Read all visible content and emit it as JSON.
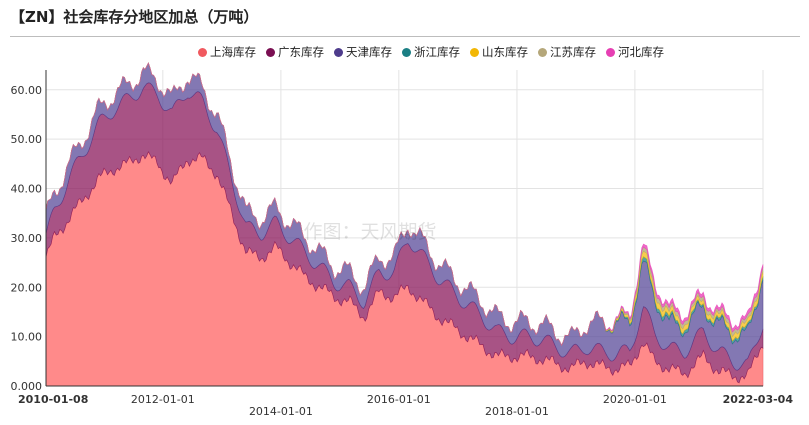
{
  "chart_data": {
    "type": "area",
    "stacked": true,
    "title": "【ZN】社会库存分地区加总（万吨）",
    "watermark": "作图：天风期货",
    "ylim": [
      0,
      64
    ],
    "y_ticks": [
      "0.000",
      "10.00",
      "20.00",
      "30.00",
      "40.00",
      "50.00",
      "60.00"
    ],
    "x_range": [
      "2010-01-08",
      "2022-03-04"
    ],
    "x_ticks": [
      {
        "date": "2010-01-08",
        "label": "2010-01-08",
        "row": 0,
        "bold": true
      },
      {
        "date": "2012-01-01",
        "label": "2012-01-01",
        "row": 0,
        "bold": false
      },
      {
        "date": "2014-01-01",
        "label": "2014-01-01",
        "row": 1,
        "bold": false
      },
      {
        "date": "2016-01-01",
        "label": "2016-01-01",
        "row": 0,
        "bold": false
      },
      {
        "date": "2018-01-01",
        "label": "2018-01-01",
        "row": 1,
        "bold": false
      },
      {
        "date": "2020-01-01",
        "label": "2020-01-01",
        "row": 0,
        "bold": false
      },
      {
        "date": "2022-03-04",
        "label": "2022-03-04",
        "row": 0,
        "bold": true
      }
    ],
    "legend_position": "top-right",
    "grid": true,
    "series": [
      {
        "name": "上海库存",
        "color": "#f0595f",
        "fill": "#ff8a8a",
        "opacity": 1.0,
        "points": [
          [
            "2010-01-08",
            26
          ],
          [
            "2010-03-01",
            30
          ],
          [
            "2010-06-01",
            34
          ],
          [
            "2010-09-01",
            38
          ],
          [
            "2010-12-01",
            42
          ],
          [
            "2011-03-01",
            44
          ],
          [
            "2011-06-01",
            45
          ],
          [
            "2011-09-01",
            47
          ],
          [
            "2011-12-01",
            45
          ],
          [
            "2012-03-01",
            41
          ],
          [
            "2012-06-01",
            46
          ],
          [
            "2012-09-01",
            46
          ],
          [
            "2012-12-01",
            43
          ],
          [
            "2013-03-01",
            35
          ],
          [
            "2013-06-01",
            27
          ],
          [
            "2013-09-01",
            26
          ],
          [
            "2013-12-01",
            28
          ],
          [
            "2014-03-01",
            25
          ],
          [
            "2014-06-01",
            22
          ],
          [
            "2014-09-01",
            20
          ],
          [
            "2014-12-01",
            18
          ],
          [
            "2015-03-01",
            17
          ],
          [
            "2015-06-01",
            14
          ],
          [
            "2015-09-01",
            19
          ],
          [
            "2015-12-01",
            18
          ],
          [
            "2016-03-01",
            20
          ],
          [
            "2016-06-01",
            17
          ],
          [
            "2016-09-01",
            14
          ],
          [
            "2016-12-01",
            12
          ],
          [
            "2017-03-01",
            10
          ],
          [
            "2017-06-01",
            8
          ],
          [
            "2017-09-01",
            6
          ],
          [
            "2017-12-01",
            6
          ],
          [
            "2018-03-01",
            6
          ],
          [
            "2018-06-01",
            5.5
          ],
          [
            "2018-09-01",
            4.5
          ],
          [
            "2018-12-01",
            3.5
          ],
          [
            "2019-03-01",
            5
          ],
          [
            "2019-06-01",
            4
          ],
          [
            "2019-09-01",
            3.5
          ],
          [
            "2019-12-01",
            4
          ],
          [
            "2020-02-20",
            9
          ],
          [
            "2020-05-01",
            5
          ],
          [
            "2020-08-01",
            3.5
          ],
          [
            "2020-11-01",
            2.5
          ],
          [
            "2021-03-01",
            6
          ],
          [
            "2021-06-01",
            3
          ],
          [
            "2021-09-01",
            2
          ],
          [
            "2021-12-01",
            2
          ],
          [
            "2022-03-04",
            9
          ]
        ]
      },
      {
        "name": "广东库存",
        "color": "#7a0f52",
        "fill": "#8b1a5c",
        "opacity": 0.75,
        "points": [
          [
            "2010-01-08",
            4
          ],
          [
            "2010-06-01",
            8
          ],
          [
            "2010-12-01",
            11
          ],
          [
            "2011-06-01",
            13
          ],
          [
            "2011-12-01",
            14
          ],
          [
            "2012-06-01",
            14
          ],
          [
            "2012-12-01",
            9
          ],
          [
            "2013-06-01",
            5
          ],
          [
            "2013-12-01",
            5
          ],
          [
            "2014-06-01",
            5
          ],
          [
            "2014-12-01",
            3
          ],
          [
            "2015-06-01",
            3
          ],
          [
            "2015-12-01",
            5
          ],
          [
            "2016-03-01",
            10
          ],
          [
            "2016-06-01",
            9
          ],
          [
            "2016-12-01",
            7
          ],
          [
            "2017-06-01",
            6
          ],
          [
            "2017-12-01",
            4
          ],
          [
            "2018-06-01",
            4
          ],
          [
            "2018-12-01",
            3
          ],
          [
            "2019-06-01",
            3
          ],
          [
            "2019-12-01",
            3
          ],
          [
            "2020-02-20",
            7
          ],
          [
            "2020-08-01",
            4
          ],
          [
            "2021-03-01",
            5
          ],
          [
            "2021-12-01",
            2
          ],
          [
            "2022-03-04",
            4
          ]
        ]
      },
      {
        "name": "天津库存",
        "color": "#4e3c8c",
        "fill": "#5a4b9a",
        "opacity": 0.75,
        "points": [
          [
            "2010-01-08",
            4
          ],
          [
            "2010-06-01",
            3
          ],
          [
            "2010-12-01",
            3
          ],
          [
            "2011-06-01",
            3
          ],
          [
            "2011-12-01",
            3
          ],
          [
            "2012-06-01",
            3
          ],
          [
            "2012-12-01",
            3
          ],
          [
            "2013-06-01",
            3
          ],
          [
            "2013-12-01",
            3
          ],
          [
            "2014-06-01",
            3
          ],
          [
            "2014-12-01",
            3
          ],
          [
            "2015-06-01",
            3
          ],
          [
            "2015-12-01",
            3
          ],
          [
            "2016-03-01",
            3
          ],
          [
            "2016-06-01",
            3
          ],
          [
            "2016-12-01",
            3
          ],
          [
            "2017-06-01",
            3
          ],
          [
            "2017-12-01",
            3
          ],
          [
            "2018-06-01",
            3
          ],
          [
            "2018-12-01",
            3
          ],
          [
            "2019-06-01",
            6
          ],
          [
            "2019-12-01",
            6
          ],
          [
            "2020-02-20",
            9
          ],
          [
            "2020-08-01",
            5
          ],
          [
            "2021-03-01",
            5
          ],
          [
            "2021-12-01",
            6
          ],
          [
            "2022-03-04",
            10
          ]
        ]
      },
      {
        "name": "浙江库存",
        "color": "#1b7f84",
        "fill": "#2a8b8a",
        "opacity": 0.8,
        "points": [
          [
            "2010-01-08",
            0
          ],
          [
            "2019-06-01",
            0
          ],
          [
            "2019-12-01",
            0.4
          ],
          [
            "2020-02-20",
            0.8
          ],
          [
            "2021-03-01",
            0.5
          ],
          [
            "2022-03-04",
            0.6
          ]
        ]
      },
      {
        "name": "山东库存",
        "color": "#f2b705",
        "fill": "#f4c430",
        "opacity": 0.85,
        "points": [
          [
            "2010-01-08",
            0
          ],
          [
            "2019-06-01",
            0
          ],
          [
            "2019-12-01",
            0.5
          ],
          [
            "2020-02-20",
            1.2
          ],
          [
            "2021-03-01",
            0.8
          ],
          [
            "2022-03-04",
            1
          ]
        ]
      },
      {
        "name": "江苏库存",
        "color": "#b5a77a",
        "fill": "#b9ad82",
        "opacity": 0.85,
        "points": [
          [
            "2010-01-08",
            0
          ],
          [
            "2019-06-01",
            0
          ],
          [
            "2019-12-01",
            0.4
          ],
          [
            "2020-02-20",
            0.9
          ],
          [
            "2021-03-01",
            0.7
          ],
          [
            "2022-03-04",
            0.8
          ]
        ]
      },
      {
        "name": "河北库存",
        "color": "#e63fb3",
        "fill": "#ec4fbf",
        "opacity": 0.85,
        "points": [
          [
            "2010-01-08",
            0
          ],
          [
            "2019-06-01",
            0
          ],
          [
            "2019-12-01",
            0.3
          ],
          [
            "2020-02-20",
            0.7
          ],
          [
            "2021-03-01",
            0.6
          ],
          [
            "2022-03-04",
            0.7
          ]
        ]
      }
    ]
  }
}
